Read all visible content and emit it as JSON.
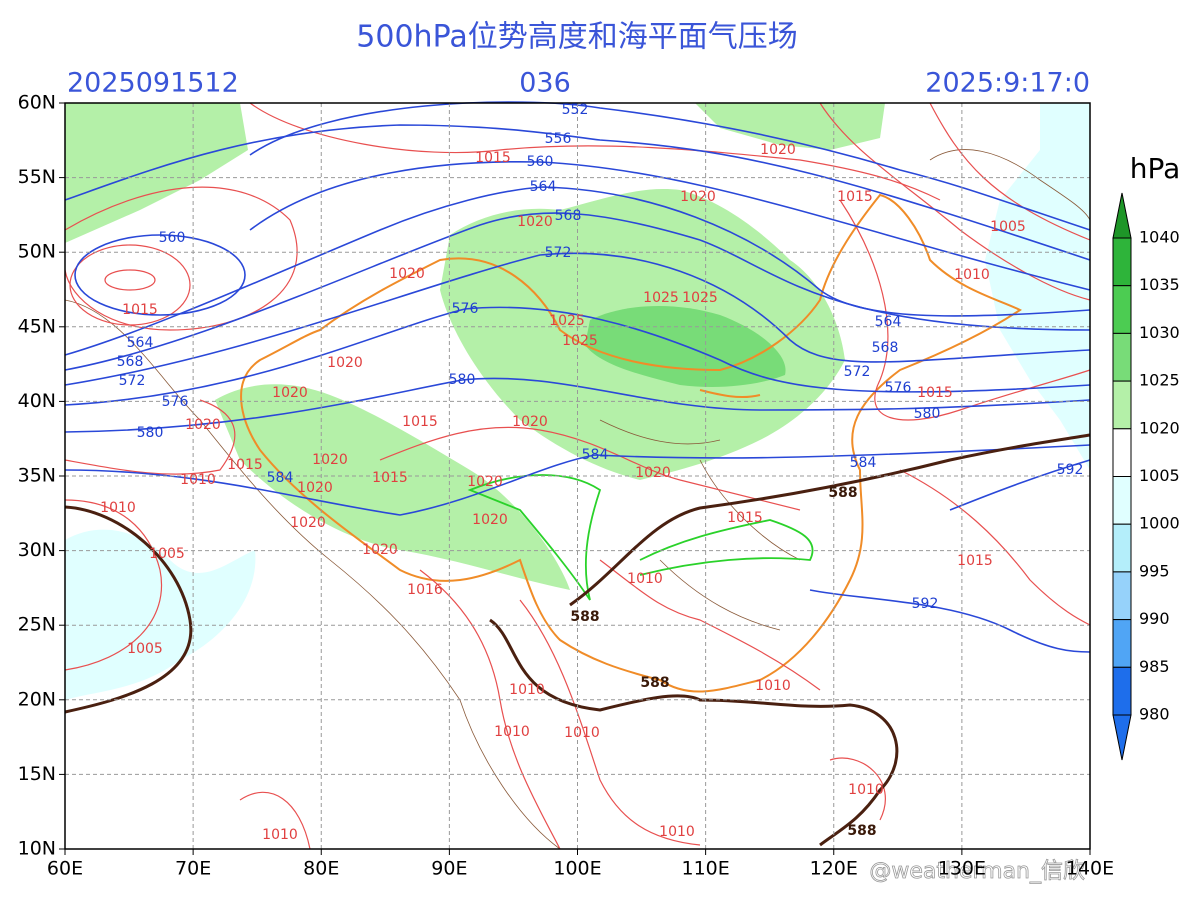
{
  "header": {
    "title": "500hPa位势高度和海平面气压场",
    "init_time": "2025091512",
    "forecast_hour": "036",
    "valid_time": "2025:9:17:0"
  },
  "axes": {
    "lon_labels": [
      "60E",
      "70E",
      "80E",
      "90E",
      "100E",
      "110E",
      "120E",
      "130E",
      "140E"
    ],
    "lat_labels": [
      "60N",
      "55N",
      "50N",
      "45N",
      "40N",
      "35N",
      "30N",
      "25N",
      "20N",
      "15N",
      "10N"
    ]
  },
  "colorbar": {
    "unit": "hPa",
    "labels": [
      "1040",
      "1035",
      "1030",
      "1025",
      "1020",
      "1005",
      "1000",
      "995",
      "990",
      "985",
      "980"
    ],
    "colors": [
      "#1e9628",
      "#2eb43a",
      "#4ccc52",
      "#78dc78",
      "#b4f0a8",
      "#ffffff",
      "#e0ffff",
      "#b4eefa",
      "#96d2fa",
      "#50a5f5",
      "#1e6eeb"
    ]
  },
  "contour_labels": {
    "height": [
      "552",
      "556",
      "560",
      "564",
      "568",
      "572",
      "576",
      "580",
      "584",
      "560",
      "564",
      "568",
      "572",
      "576",
      "580",
      "584",
      "564",
      "568",
      "572",
      "576",
      "580",
      "584",
      "592",
      "592"
    ],
    "ridge": [
      "588",
      "588",
      "588",
      "588"
    ],
    "pressure": [
      "1015",
      "1020",
      "1020",
      "1015",
      "1005",
      "1010",
      "1020",
      "1020",
      "1015",
      "1025",
      "1025",
      "1025",
      "1025",
      "1020",
      "1020",
      "1015",
      "1020",
      "1015",
      "1020",
      "1015",
      "1010",
      "1020",
      "1015",
      "1020",
      "1020",
      "1020",
      "1020",
      "1020",
      "1015",
      "1010",
      "1005",
      "1020",
      "1015",
      "1010",
      "1016",
      "1005",
      "1010",
      "1010",
      "1010",
      "1010",
      "1010",
      "1010",
      "1010"
    ]
  },
  "watermark": "@weatherman_信欣"
}
